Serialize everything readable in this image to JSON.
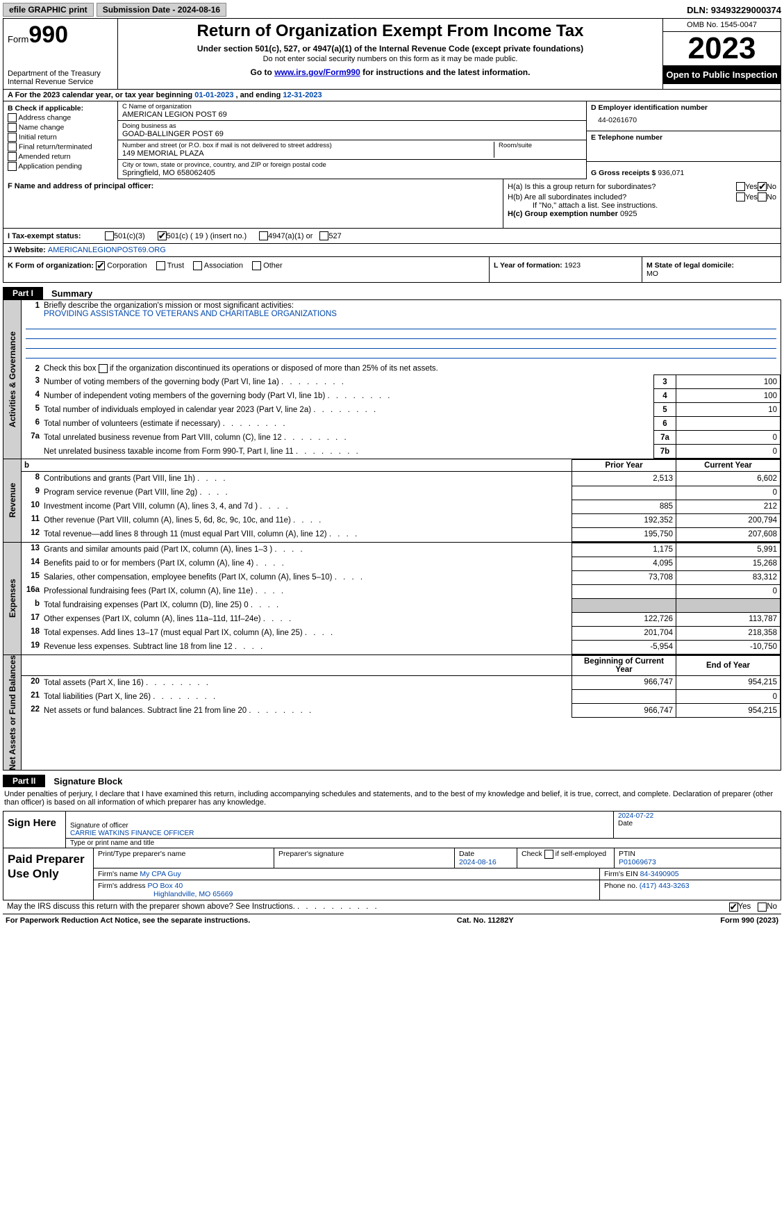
{
  "topbar": {
    "efile": "efile GRAPHIC print",
    "submission": "Submission Date - 2024-08-16",
    "dln": "DLN: 93493229000374"
  },
  "header": {
    "form": "Form",
    "formnum": "990",
    "dept": "Department of the Treasury",
    "irs": "Internal Revenue Service",
    "title": "Return of Organization Exempt From Income Tax",
    "subtitle": "Under section 501(c), 527, or 4947(a)(1) of the Internal Revenue Code (except private foundations)",
    "sub2": "Do not enter social security numbers on this form as it may be made public.",
    "sub3a": "Go to ",
    "sub3link": "www.irs.gov/Form990",
    "sub3b": " for instructions and the latest information.",
    "omb": "OMB No. 1545-0047",
    "year": "2023",
    "inspect": "Open to Public Inspection"
  },
  "rowA": {
    "a": "A",
    "txt1": "For the 2023 calendar year, or tax year beginning ",
    "begin": "01-01-2023",
    "txt2": " , and ending ",
    "end": "12-31-2023"
  },
  "colB": {
    "lbl": "B Check if applicable:",
    "items": [
      "Address change",
      "Name change",
      "Initial return",
      "Final return/terminated",
      "Amended return",
      "Application pending"
    ]
  },
  "colC": {
    "name_lbl": "C Name of organization",
    "name": "AMERICAN LEGION POST 69",
    "dba_lbl": "Doing business as",
    "dba": "GOAD-BALLINGER POST 69",
    "street_lbl": "Number and street (or P.O. box if mail is not delivered to street address)",
    "street": "149 MEMORIAL PLAZA",
    "room_lbl": "Room/suite",
    "city_lbl": "City or town, state or province, country, and ZIP or foreign postal code",
    "city": "Springfield, MO  658062405"
  },
  "colD": {
    "d_lbl": "D Employer identification number",
    "ein": "44-0261670",
    "e_lbl": "E Telephone number",
    "g_lbl": "G Gross receipts $ ",
    "g_val": "936,071"
  },
  "rowF": {
    "f_lbl": "F Name and address of principal officer:",
    "ha": "H(a)  Is this a group return for subordinates?",
    "hb": "H(b)  Are all subordinates included?",
    "hb2": "If \"No,\" attach a list. See instructions.",
    "hc": "H(c)  Group exemption number  ",
    "hc_val": "0925",
    "yes": "Yes",
    "no": "No"
  },
  "rowI": {
    "lbl": "I  Tax-exempt status:",
    "o1": "501(c)(3)",
    "o2": "501(c) ( 19 ) (insert no.)",
    "o3": "4947(a)(1) or",
    "o4": "527"
  },
  "rowJ": {
    "lbl": "J  Website: ",
    "val": "AMERICANLEGIONPOST69.ORG"
  },
  "rowK": {
    "lbl": "K Form of organization:",
    "o1": "Corporation",
    "o2": "Trust",
    "o3": "Association",
    "o4": "Other",
    "l_lbl": "L Year of formation: ",
    "l_val": "1923",
    "m_lbl": "M State of legal domicile:",
    "m_val": "MO"
  },
  "part1": {
    "lbl": "Part I",
    "title": "Summary",
    "vtab1": "Activities & Governance",
    "l1a": "Briefly describe the organization's mission or most significant activities:",
    "l1b": "PROVIDING ASSISTANCE TO VETERANS AND CHARITABLE ORGANIZATIONS",
    "l2": "Check this box      if the organization discontinued its operations or disposed of more than 25% of its net assets.",
    "rows_gov": [
      {
        "n": "3",
        "t": "Number of voting members of the governing body (Part VI, line 1a)",
        "rn": "3",
        "v": "100"
      },
      {
        "n": "4",
        "t": "Number of independent voting members of the governing body (Part VI, line 1b)",
        "rn": "4",
        "v": "100"
      },
      {
        "n": "5",
        "t": "Total number of individuals employed in calendar year 2023 (Part V, line 2a)",
        "rn": "5",
        "v": "10"
      },
      {
        "n": "6",
        "t": "Total number of volunteers (estimate if necessary)",
        "rn": "6",
        "v": ""
      },
      {
        "n": "7a",
        "t": "Total unrelated business revenue from Part VIII, column (C), line 12",
        "rn": "7a",
        "v": "0"
      },
      {
        "n": "",
        "t": "Net unrelated business taxable income from Form 990-T, Part I, line 11",
        "rn": "7b",
        "v": "0"
      }
    ],
    "vtab2": "Revenue",
    "hdr_prior": "Prior Year",
    "hdr_curr": "Current Year",
    "rows_rev": [
      {
        "n": "8",
        "t": "Contributions and grants (Part VIII, line 1h)",
        "p": "2,513",
        "c": "6,602"
      },
      {
        "n": "9",
        "t": "Program service revenue (Part VIII, line 2g)",
        "p": "",
        "c": "0"
      },
      {
        "n": "10",
        "t": "Investment income (Part VIII, column (A), lines 3, 4, and 7d )",
        "p": "885",
        "c": "212"
      },
      {
        "n": "11",
        "t": "Other revenue (Part VIII, column (A), lines 5, 6d, 8c, 9c, 10c, and 11e)",
        "p": "192,352",
        "c": "200,794"
      },
      {
        "n": "12",
        "t": "Total revenue—add lines 8 through 11 (must equal Part VIII, column (A), line 12)",
        "p": "195,750",
        "c": "207,608"
      }
    ],
    "vtab3": "Expenses",
    "rows_exp": [
      {
        "n": "13",
        "t": "Grants and similar amounts paid (Part IX, column (A), lines 1–3 )",
        "p": "1,175",
        "c": "5,991"
      },
      {
        "n": "14",
        "t": "Benefits paid to or for members (Part IX, column (A), line 4)",
        "p": "4,095",
        "c": "15,268"
      },
      {
        "n": "15",
        "t": "Salaries, other compensation, employee benefits (Part IX, column (A), lines 5–10)",
        "p": "73,708",
        "c": "83,312"
      },
      {
        "n": "16a",
        "t": "Professional fundraising fees (Part IX, column (A), line 11e)",
        "p": "",
        "c": "0"
      },
      {
        "n": "b",
        "t": "Total fundraising expenses (Part IX, column (D), line 25) 0",
        "p": "shade",
        "c": "shade"
      },
      {
        "n": "17",
        "t": "Other expenses (Part IX, column (A), lines 11a–11d, 11f–24e)",
        "p": "122,726",
        "c": "113,787"
      },
      {
        "n": "18",
        "t": "Total expenses. Add lines 13–17 (must equal Part IX, column (A), line 25)",
        "p": "201,704",
        "c": "218,358"
      },
      {
        "n": "19",
        "t": "Revenue less expenses. Subtract line 18 from line 12",
        "p": "-5,954",
        "c": "-10,750"
      }
    ],
    "vtab4": "Net Assets or Fund Balances",
    "hdr_beg": "Beginning of Current Year",
    "hdr_end": "End of Year",
    "rows_net": [
      {
        "n": "20",
        "t": "Total assets (Part X, line 16)",
        "p": "966,747",
        "c": "954,215"
      },
      {
        "n": "21",
        "t": "Total liabilities (Part X, line 26)",
        "p": "",
        "c": "0"
      },
      {
        "n": "22",
        "t": "Net assets or fund balances. Subtract line 21 from line 20",
        "p": "966,747",
        "c": "954,215"
      }
    ]
  },
  "part2": {
    "lbl": "Part II",
    "title": "Signature Block",
    "perjury": "Under penalties of perjury, I declare that I have examined this return, including accompanying schedules and statements, and to the best of my knowledge and belief, it is true, correct, and complete. Declaration of preparer (other than officer) is based on all information of which preparer has any knowledge."
  },
  "sign": {
    "lbl": "Sign Here",
    "sig_lbl": "Signature of officer",
    "date_lbl": "Date",
    "date": "2024-07-22",
    "name": "CARRIE WATKINS FINANCE OFFICER",
    "name_lbl": "Type or print name and title"
  },
  "prep": {
    "lbl": "Paid Preparer Use Only",
    "h1": "Print/Type preparer's name",
    "h2": "Preparer's signature",
    "h3": "Date",
    "h3v": "2024-08-16",
    "h4": "Check         if self-employed",
    "h5": "PTIN",
    "h5v": "P01069673",
    "firm_lbl": "Firm's name  ",
    "firm": "My CPA Guy",
    "ein_lbl": "Firm's EIN  ",
    "ein": "84-3490905",
    "addr_lbl": "Firm's address ",
    "addr1": "PO Box 40",
    "addr2": "Highlandville, MO  65669",
    "phone_lbl": "Phone no. ",
    "phone": "(417) 443-3263"
  },
  "may": {
    "txt": "May the IRS discuss this return with the preparer shown above? See Instructions.",
    "yes": "Yes",
    "no": "No"
  },
  "footer": {
    "left": "For Paperwork Reduction Act Notice, see the separate instructions.",
    "mid": "Cat. No. 11282Y",
    "right": "Form 990 (2023)"
  }
}
